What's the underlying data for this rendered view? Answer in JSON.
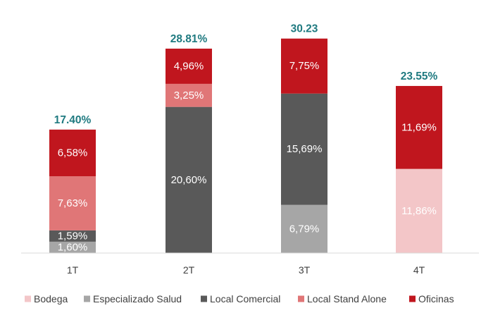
{
  "chart_data": {
    "type": "bar",
    "stacked": true,
    "categories": [
      "1T",
      "2T",
      "3T",
      "4T"
    ],
    "series": [
      {
        "name": "Bodega",
        "color": "#f3c6c8",
        "values": [
          0,
          0,
          0,
          11.86
        ],
        "labels": [
          "",
          "",
          "",
          "11,86%"
        ]
      },
      {
        "name": "Especializado Salud",
        "color": "#a6a6a6",
        "values": [
          1.6,
          0,
          6.79,
          0
        ],
        "labels": [
          "1,60%",
          "",
          "6,79%",
          ""
        ]
      },
      {
        "name": "Local Comercial",
        "color": "#595959",
        "values": [
          1.59,
          20.6,
          15.69,
          0
        ],
        "labels": [
          "1,59%",
          "20,60%",
          "15,69%",
          ""
        ]
      },
      {
        "name": "Local Stand Alone",
        "color": "#e07677",
        "values": [
          7.63,
          3.25,
          0,
          0
        ],
        "labels": [
          "7,63%",
          "3,25%",
          "",
          ""
        ]
      },
      {
        "name": "Oficinas",
        "color": "#c0161e",
        "values": [
          6.58,
          4.96,
          7.75,
          11.69
        ],
        "labels": [
          "6,58%",
          "4,96%",
          "7,75%",
          "11,69%"
        ]
      }
    ],
    "totals": [
      17.4,
      28.81,
      30.23,
      23.55
    ],
    "total_labels": [
      "17.40%",
      "28.81%",
      "30.23",
      "23.55%"
    ],
    "total_color": "#1f7a80",
    "ylim": [
      0,
      30.5
    ],
    "grid": false,
    "legend_position": "bottom"
  }
}
